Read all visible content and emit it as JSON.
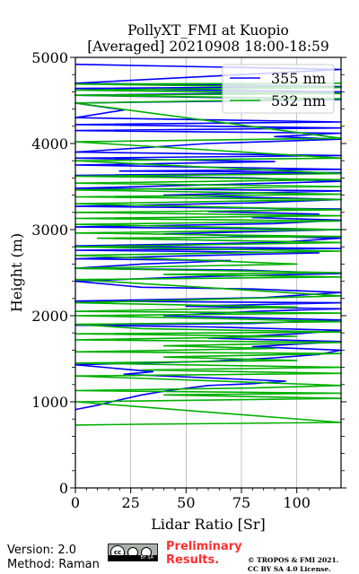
{
  "chart_data": {
    "type": "line",
    "title": "PollyXT_FMI at Kuopio",
    "subtitle": "[Averaged] 20210908 18:00-18:59",
    "xlabel": "Lidar Ratio [Sr]",
    "ylabel": "Height (m)",
    "xlim": [
      0,
      120
    ],
    "ylim": [
      0,
      5000
    ],
    "xticks": [
      "0",
      "25",
      "50",
      "75",
      "100"
    ],
    "yticks": [
      "0",
      "1000",
      "2000",
      "3000",
      "4000",
      "5000"
    ],
    "grid": "vertical",
    "legend": "top-right",
    "series": [
      {
        "name": "355 nm",
        "color": "#0000ff",
        "points": [
          [
            0,
            910
          ],
          [
            10,
            960
          ],
          [
            18,
            1010
          ],
          [
            30,
            1080
          ],
          [
            42,
            1130
          ],
          [
            60,
            1190
          ],
          [
            80,
            1210
          ],
          [
            95,
            1240
          ],
          [
            22,
            1320
          ],
          [
            35,
            1350
          ],
          [
            0,
            1430
          ],
          [
            60,
            1470
          ],
          [
            90,
            1510
          ],
          [
            110,
            1550
          ],
          [
            120,
            1600
          ],
          [
            80,
            1640
          ],
          [
            120,
            1700
          ],
          [
            60,
            1740
          ],
          [
            100,
            1790
          ],
          [
            120,
            1830
          ],
          [
            60,
            1870
          ],
          [
            0,
            1890
          ],
          [
            80,
            1910
          ],
          [
            120,
            1950
          ],
          [
            40,
            2000
          ],
          [
            80,
            2050
          ],
          [
            120,
            2080
          ],
          [
            50,
            2110
          ],
          [
            120,
            2150
          ],
          [
            0,
            2170
          ],
          [
            85,
            2210
          ],
          [
            120,
            2270
          ],
          [
            80,
            2310
          ],
          [
            30,
            2330
          ],
          [
            0,
            2400
          ],
          [
            50,
            2450
          ],
          [
            120,
            2490
          ],
          [
            75,
            2530
          ],
          [
            0,
            2550
          ],
          [
            30,
            2600
          ],
          [
            70,
            2640
          ],
          [
            0,
            2660
          ],
          [
            40,
            2690
          ],
          [
            110,
            2730
          ],
          [
            0,
            2760
          ],
          [
            120,
            2780
          ],
          [
            0,
            2810
          ],
          [
            90,
            2850
          ],
          [
            120,
            2900
          ],
          [
            40,
            2950
          ],
          [
            120,
            3000
          ],
          [
            0,
            3030
          ],
          [
            90,
            3070
          ],
          [
            120,
            3110
          ],
          [
            80,
            3140
          ],
          [
            110,
            3180
          ],
          [
            60,
            3210
          ],
          [
            120,
            3240
          ],
          [
            0,
            3270
          ],
          [
            80,
            3310
          ],
          [
            120,
            3350
          ],
          [
            40,
            3400
          ],
          [
            120,
            3450
          ],
          [
            0,
            3480
          ],
          [
            60,
            3520
          ],
          [
            120,
            3560
          ],
          [
            80,
            3600
          ],
          [
            0,
            3630
          ],
          [
            120,
            3660
          ],
          [
            20,
            3680
          ],
          [
            120,
            3700
          ],
          [
            0,
            3750
          ],
          [
            90,
            3790
          ],
          [
            0,
            3830
          ],
          [
            120,
            3860
          ],
          [
            0,
            3900
          ],
          [
            60,
            4000
          ],
          [
            120,
            4050
          ],
          [
            90,
            4080
          ],
          [
            120,
            4120
          ],
          [
            0,
            4150
          ],
          [
            120,
            4180
          ],
          [
            0,
            4220
          ],
          [
            120,
            4250
          ],
          [
            0,
            4300
          ],
          [
            22,
            4390
          ],
          [
            0,
            4470
          ],
          [
            120,
            4510
          ],
          [
            0,
            4560
          ],
          [
            120,
            4600
          ],
          [
            0,
            4640
          ],
          [
            120,
            4660
          ],
          [
            0,
            4700
          ],
          [
            120,
            4860
          ],
          [
            0,
            4920
          ]
        ]
      },
      {
        "name": "532 nm",
        "color": "#00b000",
        "points": [
          [
            0,
            730
          ],
          [
            30,
            740
          ],
          [
            120,
            760
          ],
          [
            0,
            1000
          ],
          [
            120,
            1040
          ],
          [
            40,
            1080
          ],
          [
            120,
            1100
          ],
          [
            0,
            1130
          ],
          [
            80,
            1160
          ],
          [
            120,
            1190
          ],
          [
            0,
            1300
          ],
          [
            120,
            1330
          ],
          [
            30,
            1370
          ],
          [
            120,
            1400
          ],
          [
            0,
            1450
          ],
          [
            100,
            1480
          ],
          [
            40,
            1520
          ],
          [
            120,
            1560
          ],
          [
            0,
            1580
          ],
          [
            90,
            1620
          ],
          [
            40,
            1650
          ],
          [
            120,
            1690
          ],
          [
            0,
            1720
          ],
          [
            100,
            1760
          ],
          [
            0,
            1790
          ],
          [
            120,
            1810
          ],
          [
            30,
            1850
          ],
          [
            0,
            1900
          ],
          [
            120,
            1930
          ],
          [
            60,
            1970
          ],
          [
            0,
            2000
          ],
          [
            120,
            2030
          ],
          [
            0,
            2050
          ],
          [
            100,
            2100
          ],
          [
            0,
            2150
          ],
          [
            120,
            2230
          ],
          [
            0,
            2420
          ],
          [
            120,
            2450
          ],
          [
            40,
            2480
          ],
          [
            120,
            2500
          ],
          [
            0,
            2550
          ],
          [
            100,
            2600
          ],
          [
            0,
            2700
          ],
          [
            120,
            2750
          ],
          [
            0,
            2800
          ],
          [
            120,
            2850
          ],
          [
            10,
            2900
          ],
          [
            120,
            2920
          ],
          [
            0,
            2960
          ],
          [
            120,
            3000
          ],
          [
            0,
            3060
          ],
          [
            120,
            3100
          ],
          [
            0,
            3130
          ],
          [
            120,
            3160
          ],
          [
            0,
            3200
          ],
          [
            120,
            3230
          ],
          [
            0,
            3300
          ],
          [
            120,
            3350
          ],
          [
            0,
            3380
          ],
          [
            120,
            3410
          ],
          [
            0,
            3460
          ],
          [
            120,
            3500
          ],
          [
            0,
            3540
          ],
          [
            120,
            3580
          ],
          [
            0,
            3620
          ],
          [
            120,
            3650
          ],
          [
            0,
            3800
          ],
          [
            120,
            3830
          ],
          [
            0,
            4020
          ],
          [
            120,
            4060
          ],
          [
            0,
            4470
          ],
          [
            120,
            4520
          ],
          [
            0,
            4560
          ],
          [
            120,
            4580
          ],
          [
            0,
            4620
          ],
          [
            120,
            4650
          ],
          [
            0,
            4690
          ],
          [
            120,
            4700
          ]
        ]
      }
    ]
  },
  "footer": {
    "version": "Version: 2.0",
    "method": "Method: Raman",
    "license_badge": "BY SA",
    "preliminary_line1": "Preliminary",
    "preliminary_line2": "Results.",
    "copyright_line1": "© TROPOS & FMI 2021.",
    "copyright_line2": "CC BY SA 4.0 License."
  }
}
